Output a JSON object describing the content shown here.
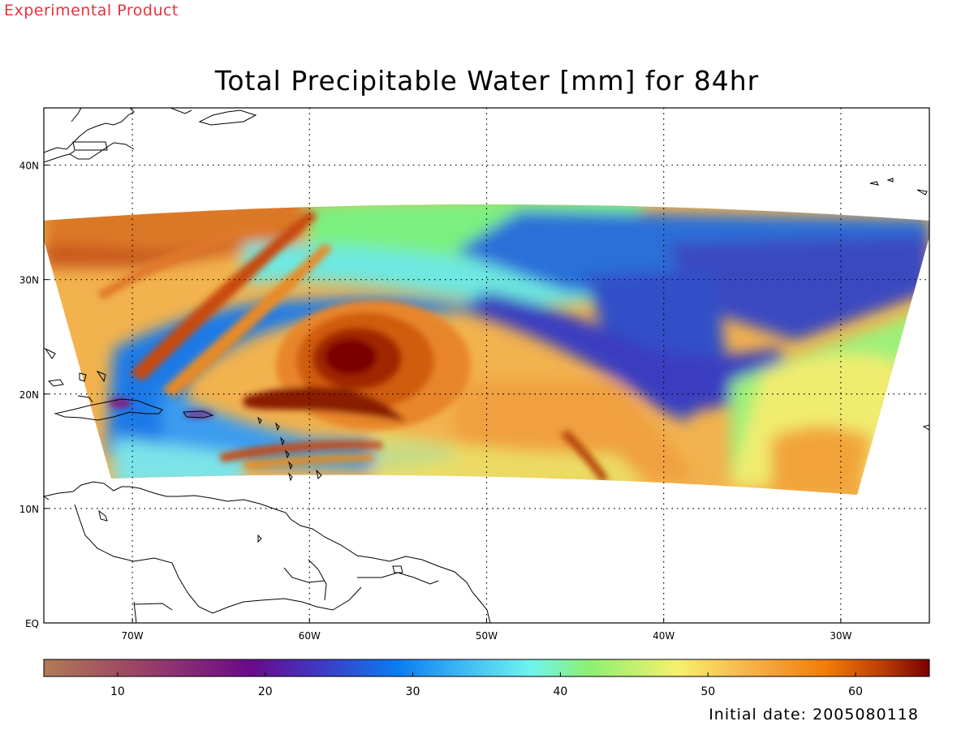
{
  "watermark": "Experimental Product",
  "title": "Total Precipitable Water [mm] for 84hr",
  "footer": "Initial date: 2005080118",
  "map": {
    "lon_range": [
      -75,
      -25
    ],
    "lat_range": [
      0,
      45
    ],
    "lon_ticks": [
      {
        "value": -70,
        "label": "70W"
      },
      {
        "value": -60,
        "label": "60W"
      },
      {
        "value": -50,
        "label": "50W"
      },
      {
        "value": -40,
        "label": "40W"
      },
      {
        "value": -30,
        "label": "30W"
      }
    ],
    "lat_ticks": [
      {
        "value": 0,
        "label": "EQ"
      },
      {
        "value": 10,
        "label": "10N"
      },
      {
        "value": 20,
        "label": "20N"
      },
      {
        "value": 30,
        "label": "30N"
      },
      {
        "value": 40,
        "label": "40N"
      }
    ],
    "gridlines": "dotted",
    "field": "Total Precipitable Water",
    "units": "mm",
    "storm_center": {
      "lon": -57.5,
      "lat": 23.0
    },
    "swath_lat_north": 36.5,
    "swath_lat_south": 12.0
  },
  "colorbar": {
    "range": [
      5,
      65
    ],
    "ticks": [
      {
        "value": 10,
        "label": "10"
      },
      {
        "value": 20,
        "label": "20"
      },
      {
        "value": 30,
        "label": "30"
      },
      {
        "value": 40,
        "label": "40"
      },
      {
        "value": 50,
        "label": "50"
      },
      {
        "value": 60,
        "label": "60"
      }
    ],
    "stops": [
      {
        "value": 5,
        "color": "#b07a55"
      },
      {
        "value": 12,
        "color": "#983e68"
      },
      {
        "value": 19,
        "color": "#6a0a8a"
      },
      {
        "value": 24,
        "color": "#3c3cc6"
      },
      {
        "value": 29,
        "color": "#0a7cf2"
      },
      {
        "value": 33,
        "color": "#3ab4f4"
      },
      {
        "value": 38,
        "color": "#6ef4ee"
      },
      {
        "value": 42,
        "color": "#8ef070"
      },
      {
        "value": 48,
        "color": "#f6f06e"
      },
      {
        "value": 53,
        "color": "#f6b048"
      },
      {
        "value": 58,
        "color": "#f27c08"
      },
      {
        "value": 62,
        "color": "#b83a06"
      },
      {
        "value": 65,
        "color": "#780000"
      }
    ]
  }
}
